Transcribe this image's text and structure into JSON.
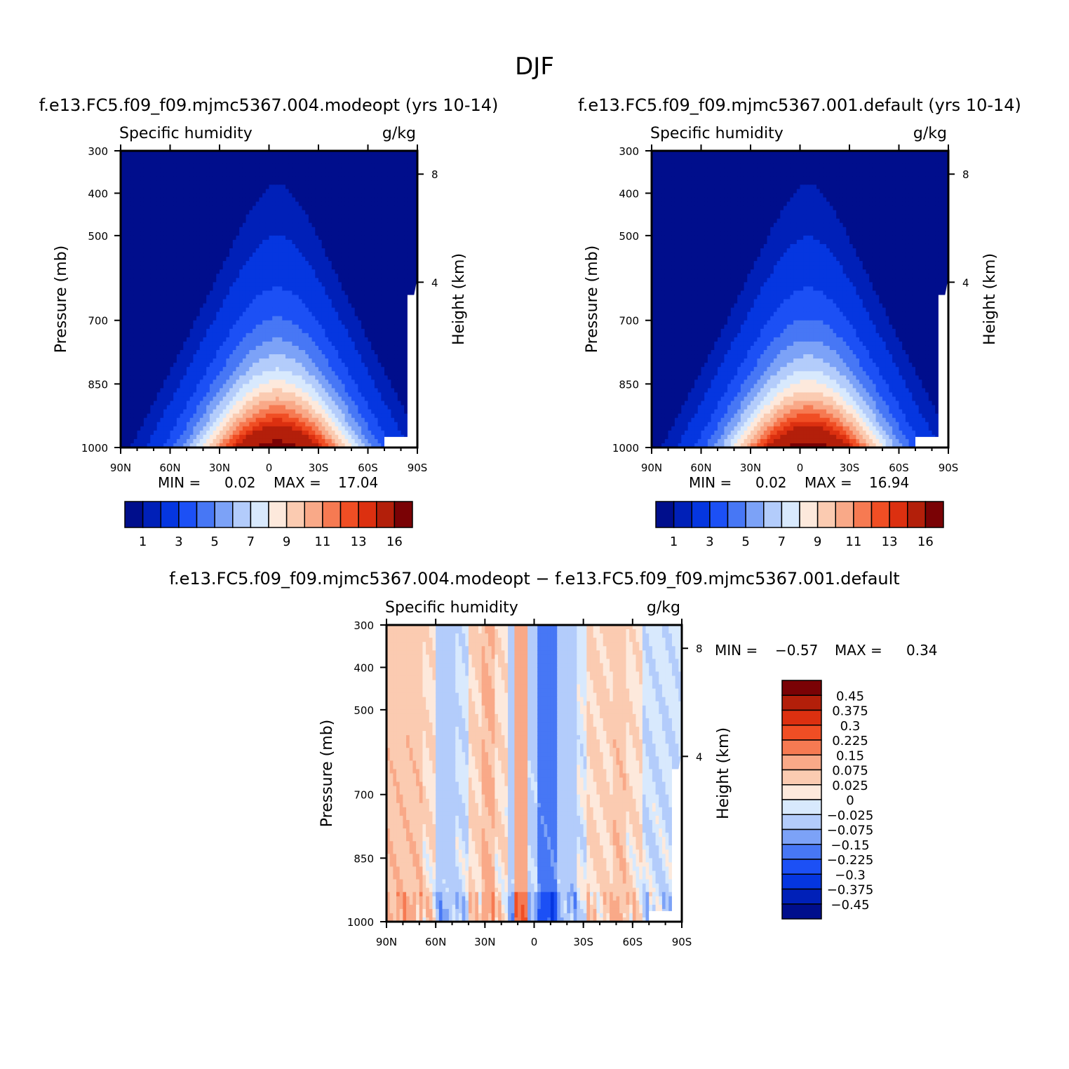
{
  "page": {
    "title": "DJF"
  },
  "palette": {
    "full": [
      "#000e8c",
      "#0020b8",
      "#0536e0",
      "#1c50f5",
      "#4777f5",
      "#7ca2f7",
      "#b3ccfb",
      "#d8e9fd",
      "#fde9dc",
      "#fbcbb1",
      "#f9a988",
      "#f67a52",
      "#f04e24",
      "#dc3010",
      "#b31f0a",
      "#7a0205"
    ],
    "diff": [
      "#7a0205",
      "#b31f0a",
      "#dc3010",
      "#f04e24",
      "#f67a52",
      "#f9a988",
      "#fbcbb1",
      "#fde9dc",
      "#d8e9fd",
      "#b3ccfb",
      "#7ca2f7",
      "#4777f5",
      "#1c50f5",
      "#0536e0",
      "#0020b8",
      "#000e8c"
    ]
  },
  "chart_data": [
    {
      "id": "panel-modeopt",
      "type": "contour",
      "title": "f.e13.FC5.f09_f09.mjmc5367.004.modeopt (yrs 10-14)",
      "variable": "Specific humidity",
      "units": "g/kg",
      "ylabel": "Pressure (mb)",
      "y2label": "Height (km)",
      "x_ticks": [
        "90N",
        "60N",
        "30N",
        "0",
        "30S",
        "60S",
        "90S"
      ],
      "y_ticks": [
        "300",
        "400",
        "500",
        "700",
        "850",
        "1000"
      ],
      "y_tick_values": [
        300,
        400,
        500,
        700,
        850,
        1000
      ],
      "y2_ticks": [
        "8",
        "4"
      ],
      "y2_tick_values": [
        355,
        610
      ],
      "xlim": [
        90,
        -90
      ],
      "ylim": [
        300,
        1000
      ],
      "min_label": "MIN =",
      "min": "0.02",
      "max_label": "MAX =",
      "max": "17.04",
      "max_value": 17.04,
      "colorbar_labels": [
        "1",
        "3",
        "5",
        "7",
        "9",
        "11",
        "13",
        "16"
      ]
    },
    {
      "id": "panel-default",
      "type": "contour",
      "title": "f.e13.FC5.f09_f09.mjmc5367.001.default (yrs 10-14)",
      "variable": "Specific humidity",
      "units": "g/kg",
      "ylabel": "Pressure (mb)",
      "y2label": "Height (km)",
      "x_ticks": [
        "90N",
        "60N",
        "30N",
        "0",
        "30S",
        "60S",
        "90S"
      ],
      "y_ticks": [
        "300",
        "400",
        "500",
        "700",
        "850",
        "1000"
      ],
      "y_tick_values": [
        300,
        400,
        500,
        700,
        850,
        1000
      ],
      "y2_ticks": [
        "8",
        "4"
      ],
      "y2_tick_values": [
        355,
        610
      ],
      "xlim": [
        90,
        -90
      ],
      "ylim": [
        300,
        1000
      ],
      "min_label": "MIN =",
      "min": "0.02",
      "max_label": "MAX =",
      "max": "16.94",
      "max_value": 16.94,
      "colorbar_labels": [
        "1",
        "3",
        "5",
        "7",
        "9",
        "11",
        "13",
        "16"
      ]
    },
    {
      "id": "panel-diff",
      "type": "contour",
      "title": "f.e13.FC5.f09_f09.mjmc5367.004.modeopt − f.e13.FC5.f09_f09.mjmc5367.001.default",
      "variable": "Specific humidity",
      "units": "g/kg",
      "ylabel": "Pressure (mb)",
      "y2label": "Height (km)",
      "x_ticks": [
        "90N",
        "60N",
        "30N",
        "0",
        "30S",
        "60S",
        "90S"
      ],
      "y_ticks": [
        "300",
        "400",
        "500",
        "700",
        "850",
        "1000"
      ],
      "y_tick_values": [
        300,
        400,
        500,
        700,
        850,
        1000
      ],
      "y2_ticks": [
        "8",
        "4"
      ],
      "y2_tick_values": [
        355,
        610
      ],
      "xlim": [
        90,
        -90
      ],
      "ylim": [
        300,
        1000
      ],
      "min_label": "MIN =",
      "min": "−0.57",
      "max_label": "MAX =",
      "max": "0.34",
      "colorbar_labels": [
        "0.45",
        "0.375",
        "0.3",
        "0.225",
        "0.15",
        "0.075",
        "0.025",
        "0",
        "−0.025",
        "−0.075",
        "−0.15",
        "−0.225",
        "−0.3",
        "−0.375",
        "−0.45"
      ],
      "diff_bands": [
        {
          "lat_from": 90,
          "lat_to": 67,
          "value": 0.06
        },
        {
          "lat_from": 67,
          "lat_to": 60,
          "value": 0.02
        },
        {
          "lat_from": 60,
          "lat_to": 48,
          "value": -0.05
        },
        {
          "lat_from": 48,
          "lat_to": 40,
          "value": -0.02
        },
        {
          "lat_from": 40,
          "lat_to": 32,
          "value": 0.03
        },
        {
          "lat_from": 32,
          "lat_to": 24,
          "value": 0.08
        },
        {
          "lat_from": 24,
          "lat_to": 16,
          "value": 0.02
        },
        {
          "lat_from": 16,
          "lat_to": 12,
          "value": -0.05
        },
        {
          "lat_from": 12,
          "lat_to": 4,
          "value": 0.12
        },
        {
          "lat_from": 4,
          "lat_to": -3,
          "value": -0.04
        },
        {
          "lat_from": -3,
          "lat_to": -15,
          "value": -0.17
        },
        {
          "lat_from": -15,
          "lat_to": -25,
          "value": -0.05
        },
        {
          "lat_from": -25,
          "lat_to": -33,
          "value": -0.01
        },
        {
          "lat_from": -33,
          "lat_to": -48,
          "value": 0.03
        },
        {
          "lat_from": -48,
          "lat_to": -56,
          "value": 0.06
        },
        {
          "lat_from": -56,
          "lat_to": -66,
          "value": 0.02
        },
        {
          "lat_from": -66,
          "lat_to": -90,
          "value": -0.02
        }
      ]
    }
  ]
}
